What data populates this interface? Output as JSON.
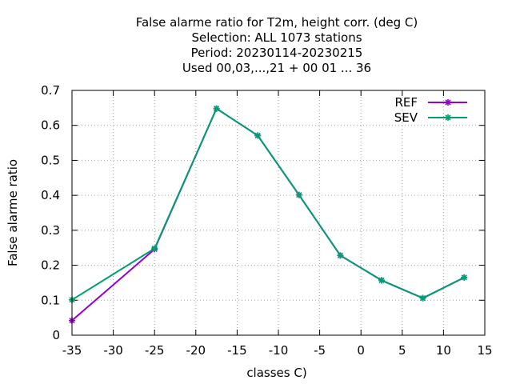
{
  "chart_data": {
    "type": "line",
    "title_lines": [
      "False alarme ratio  for T2m, height corr. (deg C)",
      "Selection: ALL   1073 stations",
      "Period: 20230114-20230215",
      "Used  00,03,...,21  + 00 01 ... 36"
    ],
    "xlabel": "classes C)",
    "ylabel": "False alarme ratio",
    "xlim": [
      -35,
      15
    ],
    "ylim": [
      0,
      0.7
    ],
    "xticks": [
      -35,
      -30,
      -25,
      -20,
      -15,
      -10,
      -5,
      0,
      5,
      10,
      15
    ],
    "xtick_labels": [
      "-35",
      "-30",
      "-25",
      "-20",
      "-15",
      "-10",
      "-5",
      "0",
      "5",
      "10",
      "15"
    ],
    "yticks": [
      0,
      0.1,
      0.2,
      0.3,
      0.4,
      0.5,
      0.6,
      0.7
    ],
    "ytick_labels": [
      "0",
      "0.1",
      "0.2",
      "0.3",
      "0.4",
      "0.5",
      "0.6",
      "0.7"
    ],
    "grid": true,
    "legend_position": "top-right",
    "series": [
      {
        "name": "REF",
        "color": "#9400d3",
        "x": [
          -35,
          -25,
          -17.5,
          -12.5,
          -7.5,
          -2.5,
          2.5,
          7.5,
          12.5
        ],
        "y": [
          0.042,
          0.246,
          0.648,
          0.571,
          0.401,
          0.228,
          0.157,
          0.106,
          0.165
        ]
      },
      {
        "name": "SEV",
        "color": "#009e73",
        "x": [
          -35,
          -25,
          -17.5,
          -12.5,
          -7.5,
          -2.5,
          2.5,
          7.5,
          12.5
        ],
        "y": [
          0.101,
          0.248,
          0.648,
          0.571,
          0.401,
          0.228,
          0.157,
          0.106,
          0.165
        ]
      }
    ]
  }
}
